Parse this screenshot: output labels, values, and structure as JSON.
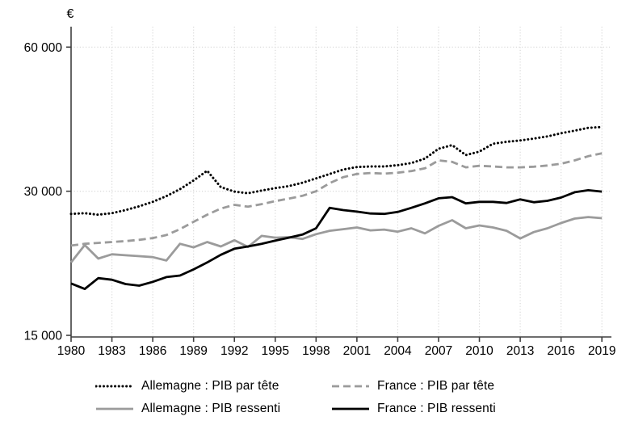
{
  "figure": {
    "currency_label": "€"
  },
  "chart_data": {
    "type": "line",
    "title": "",
    "xlabel": "",
    "ylabel": "€",
    "unit": "euros",
    "y_scale": "log2",
    "ylim": [
      15000,
      66000
    ],
    "grid": "dotted",
    "legend_position": "bottom",
    "x": [
      1980,
      1981,
      1982,
      1983,
      1984,
      1985,
      1986,
      1987,
      1988,
      1989,
      1990,
      1991,
      1992,
      1993,
      1994,
      1995,
      1996,
      1997,
      1998,
      1999,
      2000,
      2001,
      2002,
      2003,
      2004,
      2005,
      2006,
      2007,
      2008,
      2009,
      2010,
      2011,
      2012,
      2013,
      2014,
      2015,
      2016,
      2017,
      2018,
      2019
    ],
    "x_tick_labels": [
      "1980",
      "1983",
      "1986",
      "1989",
      "1992",
      "1995",
      "1998",
      "2001",
      "2004",
      "2007",
      "2010",
      "2013",
      "2016",
      "2019"
    ],
    "x_tick_years": [
      1980,
      1983,
      1986,
      1989,
      1992,
      1995,
      1998,
      2001,
      2004,
      2007,
      2010,
      2013,
      2016,
      2019
    ],
    "y_ticks": [
      {
        "value": 15000,
        "label": "15 000"
      },
      {
        "value": 30000,
        "label": "30 000"
      },
      {
        "value": 60000,
        "label": "60 000"
      }
    ],
    "colors": {
      "black": "#000000",
      "gray": "#9b9b9b",
      "gridline": "#d8d8d8",
      "axis": "#3f3f3f"
    },
    "series": [
      {
        "name": "Allemagne : PIB par tête",
        "style": "dotted",
        "color": "#000000",
        "values": [
          26900,
          27000,
          26800,
          27000,
          27400,
          27900,
          28500,
          29300,
          30300,
          31600,
          33100,
          30600,
          29950,
          29700,
          30100,
          30450,
          30750,
          31250,
          31900,
          32600,
          33300,
          33700,
          33800,
          33800,
          34000,
          34350,
          35100,
          36800,
          37450,
          35700,
          36300,
          37700,
          38050,
          38300,
          38650,
          39050,
          39650,
          40150,
          40700,
          40850
        ]
      },
      {
        "name": "France : PIB par tête",
        "style": "dashed",
        "color": "#9b9b9b",
        "values": [
          23100,
          23300,
          23400,
          23500,
          23600,
          23750,
          23950,
          24300,
          25000,
          25900,
          26800,
          27600,
          28100,
          27850,
          28200,
          28600,
          28950,
          29350,
          30000,
          31200,
          32100,
          32600,
          32750,
          32650,
          32800,
          33050,
          33500,
          34800,
          34550,
          33650,
          33900,
          33800,
          33650,
          33650,
          33750,
          33950,
          34250,
          34800,
          35500,
          36000
        ]
      },
      {
        "name": "Allemagne : PIB ressenti",
        "style": "solid",
        "color": "#9b9b9b",
        "values": [
          21300,
          23150,
          21700,
          22150,
          22050,
          21950,
          21850,
          21500,
          23300,
          22900,
          23500,
          23000,
          23700,
          22950,
          24200,
          24000,
          24050,
          23850,
          24400,
          24800,
          25000,
          25200,
          24850,
          24950,
          24700,
          25100,
          24500,
          25400,
          26100,
          25100,
          25450,
          25200,
          24800,
          23900,
          24650,
          25100,
          25750,
          26300,
          26500,
          26350
        ]
      },
      {
        "name": "France : PIB ressenti",
        "style": "solid",
        "color": "#000000",
        "values": [
          19250,
          18750,
          19750,
          19600,
          19200,
          19050,
          19400,
          19850,
          20000,
          20600,
          21300,
          22100,
          22750,
          23000,
          23300,
          23650,
          24000,
          24350,
          25100,
          27700,
          27400,
          27200,
          26950,
          26900,
          27150,
          27700,
          28300,
          29000,
          29150,
          28300,
          28500,
          28500,
          28350,
          28850,
          28450,
          28650,
          29100,
          29850,
          30150,
          29950
        ]
      }
    ]
  }
}
